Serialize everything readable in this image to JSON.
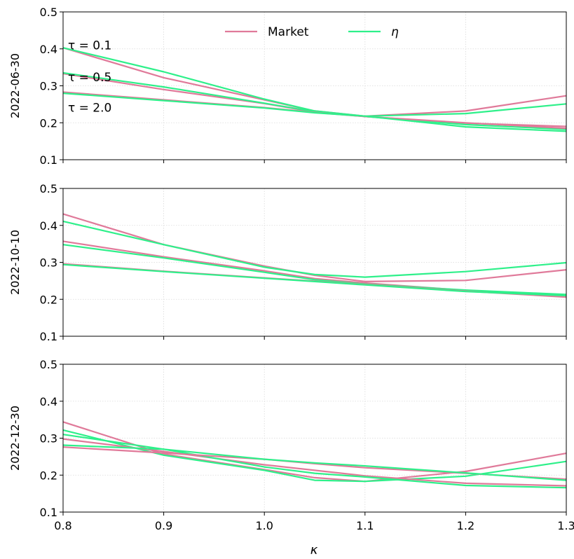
{
  "chart_data": {
    "type": "line",
    "xlabel": "κ",
    "xlim": [
      0.8,
      1.3
    ],
    "xticks": [
      0.8,
      0.9,
      1.0,
      1.1,
      1.2,
      1.3
    ],
    "xtick_labels": [
      "0.8",
      "0.9",
      "1.0",
      "1.1",
      "1.2",
      "1.3"
    ],
    "ylim": [
      0.1,
      0.5
    ],
    "yticks": [
      0.1,
      0.2,
      0.3,
      0.4,
      0.5
    ],
    "ytick_labels": [
      "0.1",
      "0.2",
      "0.3",
      "0.4",
      "0.5"
    ],
    "grid": true,
    "legend": {
      "placement": "top-center",
      "entries": [
        {
          "label": "Market",
          "color": "#e07a9a"
        },
        {
          "label": "η",
          "color": "#2ef08a"
        }
      ]
    },
    "colors": {
      "market": "#e07a9a",
      "eta": "#2ef08a"
    },
    "panels": [
      {
        "ylabel": "2022-06-30",
        "annotations": [
          "τ = 0.1",
          "τ = 0.5",
          "τ = 2.0"
        ],
        "series": [
          {
            "kind": "market",
            "x": [
              0.8,
              0.9,
              1.0,
              1.05,
              1.1,
              1.2,
              1.3
            ],
            "y": [
              0.403,
              0.322,
              0.262,
              0.232,
              0.218,
              0.232,
              0.273
            ]
          },
          {
            "kind": "eta",
            "x": [
              0.8,
              0.9,
              1.0,
              1.05,
              1.1,
              1.2,
              1.3
            ],
            "y": [
              0.403,
              0.338,
              0.264,
              0.232,
              0.218,
              0.225,
              0.251
            ]
          },
          {
            "kind": "market",
            "x": [
              0.8,
              0.9,
              1.0,
              1.05,
              1.1,
              1.2,
              1.3
            ],
            "y": [
              0.333,
              0.29,
              0.252,
              0.229,
              0.217,
              0.199,
              0.19
            ]
          },
          {
            "kind": "eta",
            "x": [
              0.8,
              0.9,
              1.0,
              1.05,
              1.1,
              1.2,
              1.3
            ],
            "y": [
              0.335,
              0.297,
              0.253,
              0.23,
              0.217,
              0.195,
              0.182
            ]
          },
          {
            "kind": "market",
            "x": [
              0.8,
              0.9,
              1.0,
              1.05,
              1.1,
              1.2,
              1.3
            ],
            "y": [
              0.283,
              0.262,
              0.241,
              0.228,
              0.217,
              0.2,
              0.185
            ]
          },
          {
            "kind": "eta",
            "x": [
              0.8,
              0.9,
              1.0,
              1.05,
              1.1,
              1.2,
              1.3
            ],
            "y": [
              0.28,
              0.26,
              0.24,
              0.227,
              0.218,
              0.189,
              0.177
            ]
          }
        ]
      },
      {
        "ylabel": "2022-10-10",
        "annotations": [],
        "series": [
          {
            "kind": "market",
            "x": [
              0.8,
              0.9,
              1.0,
              1.05,
              1.1,
              1.2,
              1.3
            ],
            "y": [
              0.431,
              0.348,
              0.29,
              0.265,
              0.248,
              0.251,
              0.28
            ]
          },
          {
            "kind": "eta",
            "x": [
              0.8,
              0.9,
              1.0,
              1.05,
              1.1,
              1.2,
              1.3
            ],
            "y": [
              0.411,
              0.348,
              0.287,
              0.267,
              0.26,
              0.275,
              0.299
            ]
          },
          {
            "kind": "market",
            "x": [
              0.8,
              0.9,
              1.0,
              1.05,
              1.1,
              1.2,
              1.3
            ],
            "y": [
              0.357,
              0.315,
              0.277,
              0.256,
              0.244,
              0.224,
              0.208
            ]
          },
          {
            "kind": "eta",
            "x": [
              0.8,
              0.9,
              1.0,
              1.05,
              1.1,
              1.2,
              1.3
            ],
            "y": [
              0.348,
              0.312,
              0.273,
              0.253,
              0.241,
              0.225,
              0.213
            ]
          },
          {
            "kind": "market",
            "x": [
              0.8,
              0.9,
              1.0,
              1.05,
              1.1,
              1.2,
              1.3
            ],
            "y": [
              0.296,
              0.276,
              0.258,
              0.249,
              0.24,
              0.222,
              0.206
            ]
          },
          {
            "kind": "eta",
            "x": [
              0.8,
              0.9,
              1.0,
              1.05,
              1.1,
              1.2,
              1.3
            ],
            "y": [
              0.294,
              0.275,
              0.257,
              0.248,
              0.239,
              0.221,
              0.21
            ]
          }
        ]
      },
      {
        "ylabel": "2022-12-30",
        "annotations": [],
        "series": [
          {
            "kind": "market",
            "x": [
              0.8,
              0.9,
              1.0,
              1.05,
              1.1,
              1.2,
              1.3
            ],
            "y": [
              0.344,
              0.257,
              0.215,
              0.193,
              0.183,
              0.21,
              0.259
            ]
          },
          {
            "kind": "eta",
            "x": [
              0.8,
              0.9,
              1.0,
              1.05,
              1.1,
              1.2,
              1.3
            ],
            "y": [
              0.322,
              0.254,
              0.213,
              0.186,
              0.183,
              0.197,
              0.237
            ]
          },
          {
            "kind": "market",
            "x": [
              0.8,
              0.9,
              1.0,
              1.05,
              1.1,
              1.2,
              1.3
            ],
            "y": [
              0.298,
              0.264,
              0.228,
              0.213,
              0.198,
              0.178,
              0.171
            ]
          },
          {
            "kind": "eta",
            "x": [
              0.8,
              0.9,
              1.0,
              1.05,
              1.1,
              1.2,
              1.3
            ],
            "y": [
              0.31,
              0.27,
              0.222,
              0.205,
              0.195,
              0.172,
              0.166
            ]
          },
          {
            "kind": "market",
            "x": [
              0.8,
              0.9,
              1.0,
              1.05,
              1.1,
              1.2,
              1.3
            ],
            "y": [
              0.276,
              0.26,
              0.243,
              0.231,
              0.22,
              0.205,
              0.189
            ]
          },
          {
            "kind": "eta",
            "x": [
              0.8,
              0.9,
              1.0,
              1.05,
              1.1,
              1.2,
              1.3
            ],
            "y": [
              0.281,
              0.27,
              0.243,
              0.233,
              0.225,
              0.206,
              0.186
            ]
          }
        ]
      }
    ]
  }
}
